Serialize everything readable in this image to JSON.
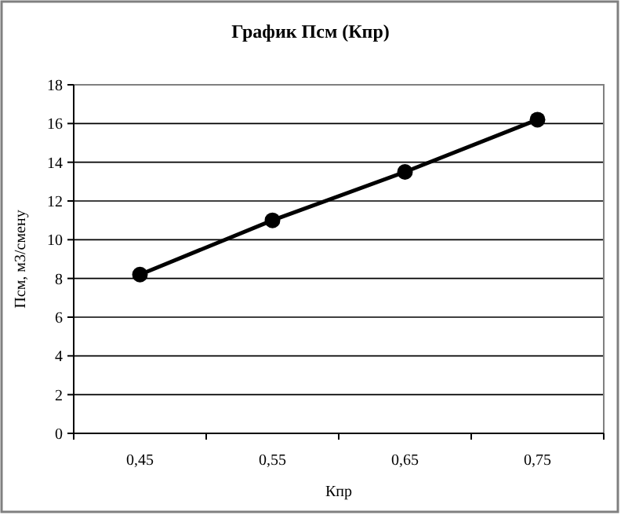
{
  "chart_data": {
    "type": "line",
    "title": "График Псм (Кпр)",
    "xlabel": "Кпр",
    "ylabel": "Псм, м3/смену",
    "categories": [
      "0,45",
      "0,55",
      "0,65",
      "0,75"
    ],
    "series": [
      {
        "color": "#000000",
        "values": [
          8.2,
          11.0,
          13.5,
          16.2
        ]
      }
    ],
    "ylim": [
      0,
      18
    ],
    "yticks": [
      0,
      2,
      4,
      6,
      8,
      10,
      12,
      14,
      16,
      18
    ],
    "grid": "y",
    "marker": "circle",
    "line_style": "solid"
  }
}
